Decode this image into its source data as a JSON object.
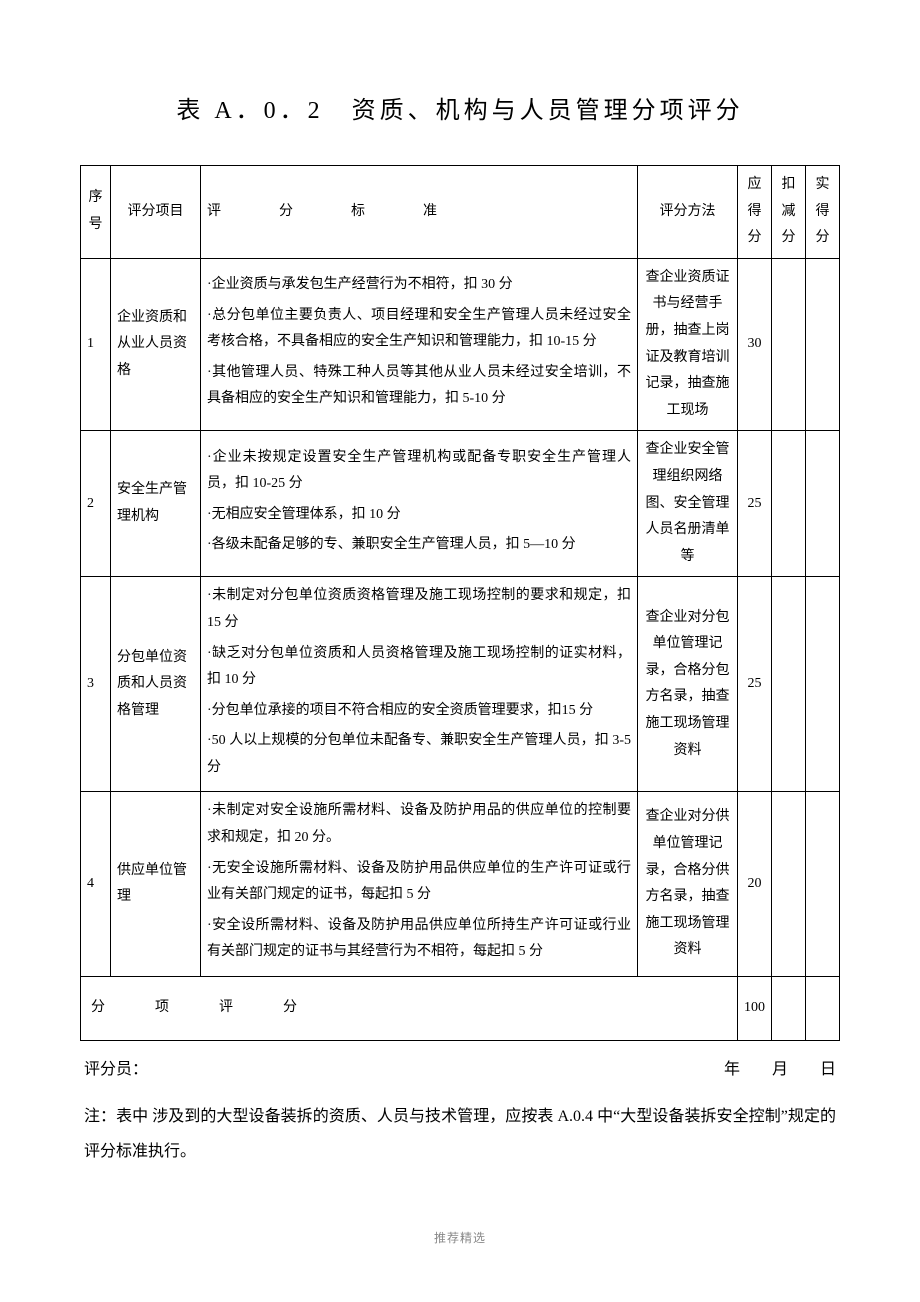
{
  "title": "表 A．0．2　资质、机构与人员管理分项评分",
  "headers": {
    "seq": "序号",
    "item": "评分项目",
    "standard": "评　分　标　准",
    "method": "评分方法",
    "should": "应得分",
    "deduct": "扣减分",
    "actual": "实得分"
  },
  "rows": [
    {
      "seq": "1",
      "item": "企业资质和从业人员资格",
      "standard": [
        "·企业资质与承发包生产经营行为不相符，扣 30 分",
        "·总分包单位主要负责人、项目经理和安全生产管理人员未经过安全考核合格，不具备相应的安全生产知识和管理能力，扣 10-15 分",
        "·其他管理人员、特殊工种人员等其他从业人员未经过安全培训，不具备相应的安全生产知识和管理能力，扣 5-10 分"
      ],
      "method": "查企业资质证书与经营手册，抽查上岗证及教育培训记录，抽查施工现场",
      "should": "30",
      "deduct": "",
      "actual": ""
    },
    {
      "seq": "2",
      "item": "安全生产管理机构",
      "standard": [
        "·企业未按规定设置安全生产管理机构或配备专职安全生产管理人员，扣 10-25 分",
        "·无相应安全管理体系，扣 10 分",
        "·各级未配备足够的专、兼职安全生产管理人员，扣 5—10 分"
      ],
      "method": "查企业安全管理组织网络图、安全管理人员名册清单等",
      "should": "25",
      "deduct": "",
      "actual": ""
    },
    {
      "seq": "3",
      "item": "分包单位资质和人员资格管理",
      "standard": [
        "·未制定对分包单位资质资格管理及施工现场控制的要求和规定，扣 15 分",
        "·缺乏对分包单位资质和人员资格管理及施工现场控制的证实材料，扣 10 分",
        "·分包单位承接的项目不符合相应的安全资质管理要求，扣15 分",
        "·50 人以上规模的分包单位未配备专、兼职安全生产管理人员，扣 3-5 分"
      ],
      "method": "查企业对分包单位管理记录，合格分包方名录，抽查施工现场管理资料",
      "should": "25",
      "deduct": "",
      "actual": ""
    },
    {
      "seq": "4",
      "item": "供应单位管理",
      "standard": [
        "·未制定对安全设施所需材料、设备及防护用品的供应单位的控制要求和规定，扣 20 分。",
        "·无安全设施所需材料、设备及防护用品供应单位的生产许可证或行业有关部门规定的证书，每起扣 5 分",
        "·安全设所需材料、设备及防护用品供应单位所持生产许可证或行业有关部门规定的证书与其经营行为不相符，每起扣 5 分"
      ],
      "method": "查企业对分供单位管理记录，合格分供方名录，抽查施工现场管理资料",
      "should": "20",
      "deduct": "",
      "actual": ""
    }
  ],
  "subtotal": {
    "label": "分　项　评　分",
    "should": "100",
    "deduct": "",
    "actual": ""
  },
  "signature": {
    "scorer": "评分员：",
    "date": "年　　月　　日"
  },
  "note": "注：表中 涉及到的大型设备装拆的资质、人员与技术管理，应按表 A.0.4 中“大型设备装拆安全控制”规定的评分标准执行。",
  "footer": "推荐精选"
}
